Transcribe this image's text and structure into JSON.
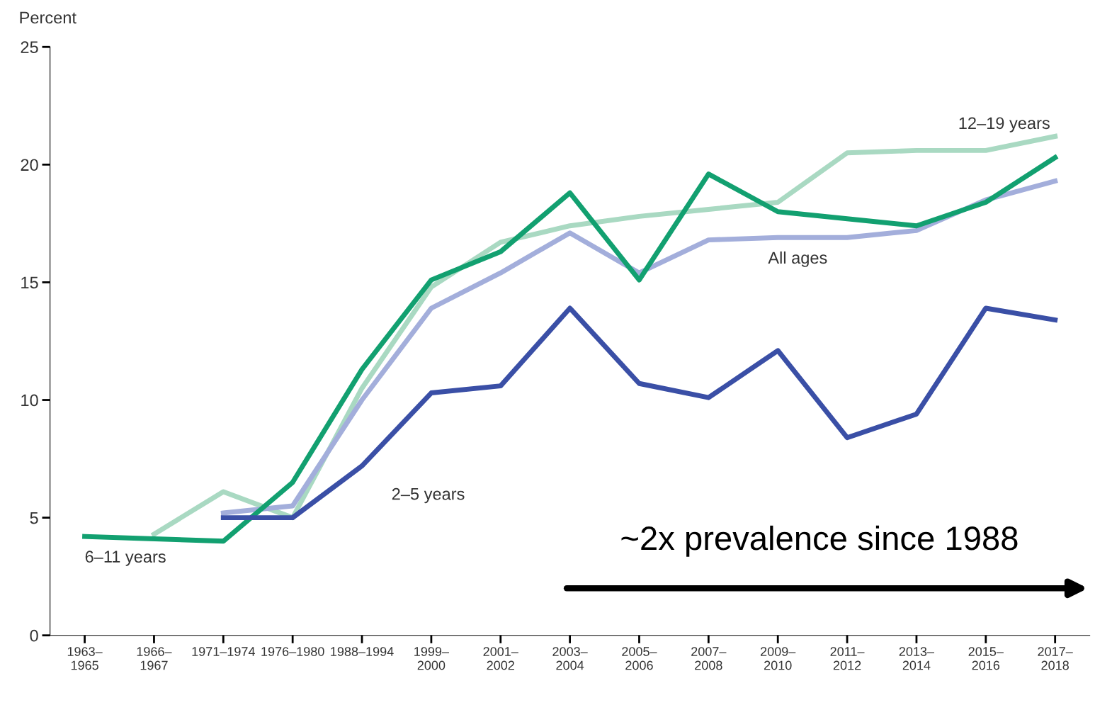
{
  "chart_data": {
    "type": "line",
    "ylabel": "Percent",
    "ylim": [
      0,
      25
    ],
    "yticks": [
      0,
      5,
      10,
      15,
      20,
      25
    ],
    "categories": [
      "1963–\n1965",
      "1966–\n1967",
      "1971–1974",
      "1976–1980",
      "1988–1994",
      "1999–\n2000",
      "2001–\n2002",
      "2003–\n2004",
      "2005–\n2006",
      "2007–\n2008",
      "2009–\n2010",
      "2011–\n2012",
      "2013–\n2014",
      "2015–\n2016",
      "2017–\n2018"
    ],
    "series": [
      {
        "name": "12–19 years",
        "color": "#a9d9c2",
        "values": [
          null,
          4.3,
          6.1,
          5.0,
          10.5,
          14.8,
          16.7,
          17.4,
          17.8,
          18.1,
          18.4,
          20.5,
          20.6,
          20.6,
          21.2
        ]
      },
      {
        "name": "All ages",
        "color": "#a3aedb",
        "values": [
          null,
          null,
          5.2,
          5.5,
          10.0,
          13.9,
          15.4,
          17.1,
          15.4,
          16.8,
          16.9,
          16.9,
          17.2,
          18.5,
          19.3
        ]
      },
      {
        "name": "6–11 years",
        "color": "#12a070",
        "values": [
          4.2,
          null,
          4.0,
          6.5,
          11.3,
          15.1,
          16.3,
          18.8,
          15.1,
          19.6,
          18.0,
          17.7,
          17.4,
          18.4,
          20.3
        ]
      },
      {
        "name": "2–5 years",
        "color": "#3a4fa6",
        "values": [
          null,
          null,
          5.0,
          5.0,
          7.2,
          10.3,
          10.6,
          13.9,
          10.7,
          10.1,
          12.1,
          8.4,
          9.4,
          13.9,
          13.4
        ]
      }
    ],
    "annotations": [
      "~2x prevalence since 1988"
    ],
    "grid": false,
    "legend": false,
    "line_style": "solid",
    "marker": "none"
  }
}
